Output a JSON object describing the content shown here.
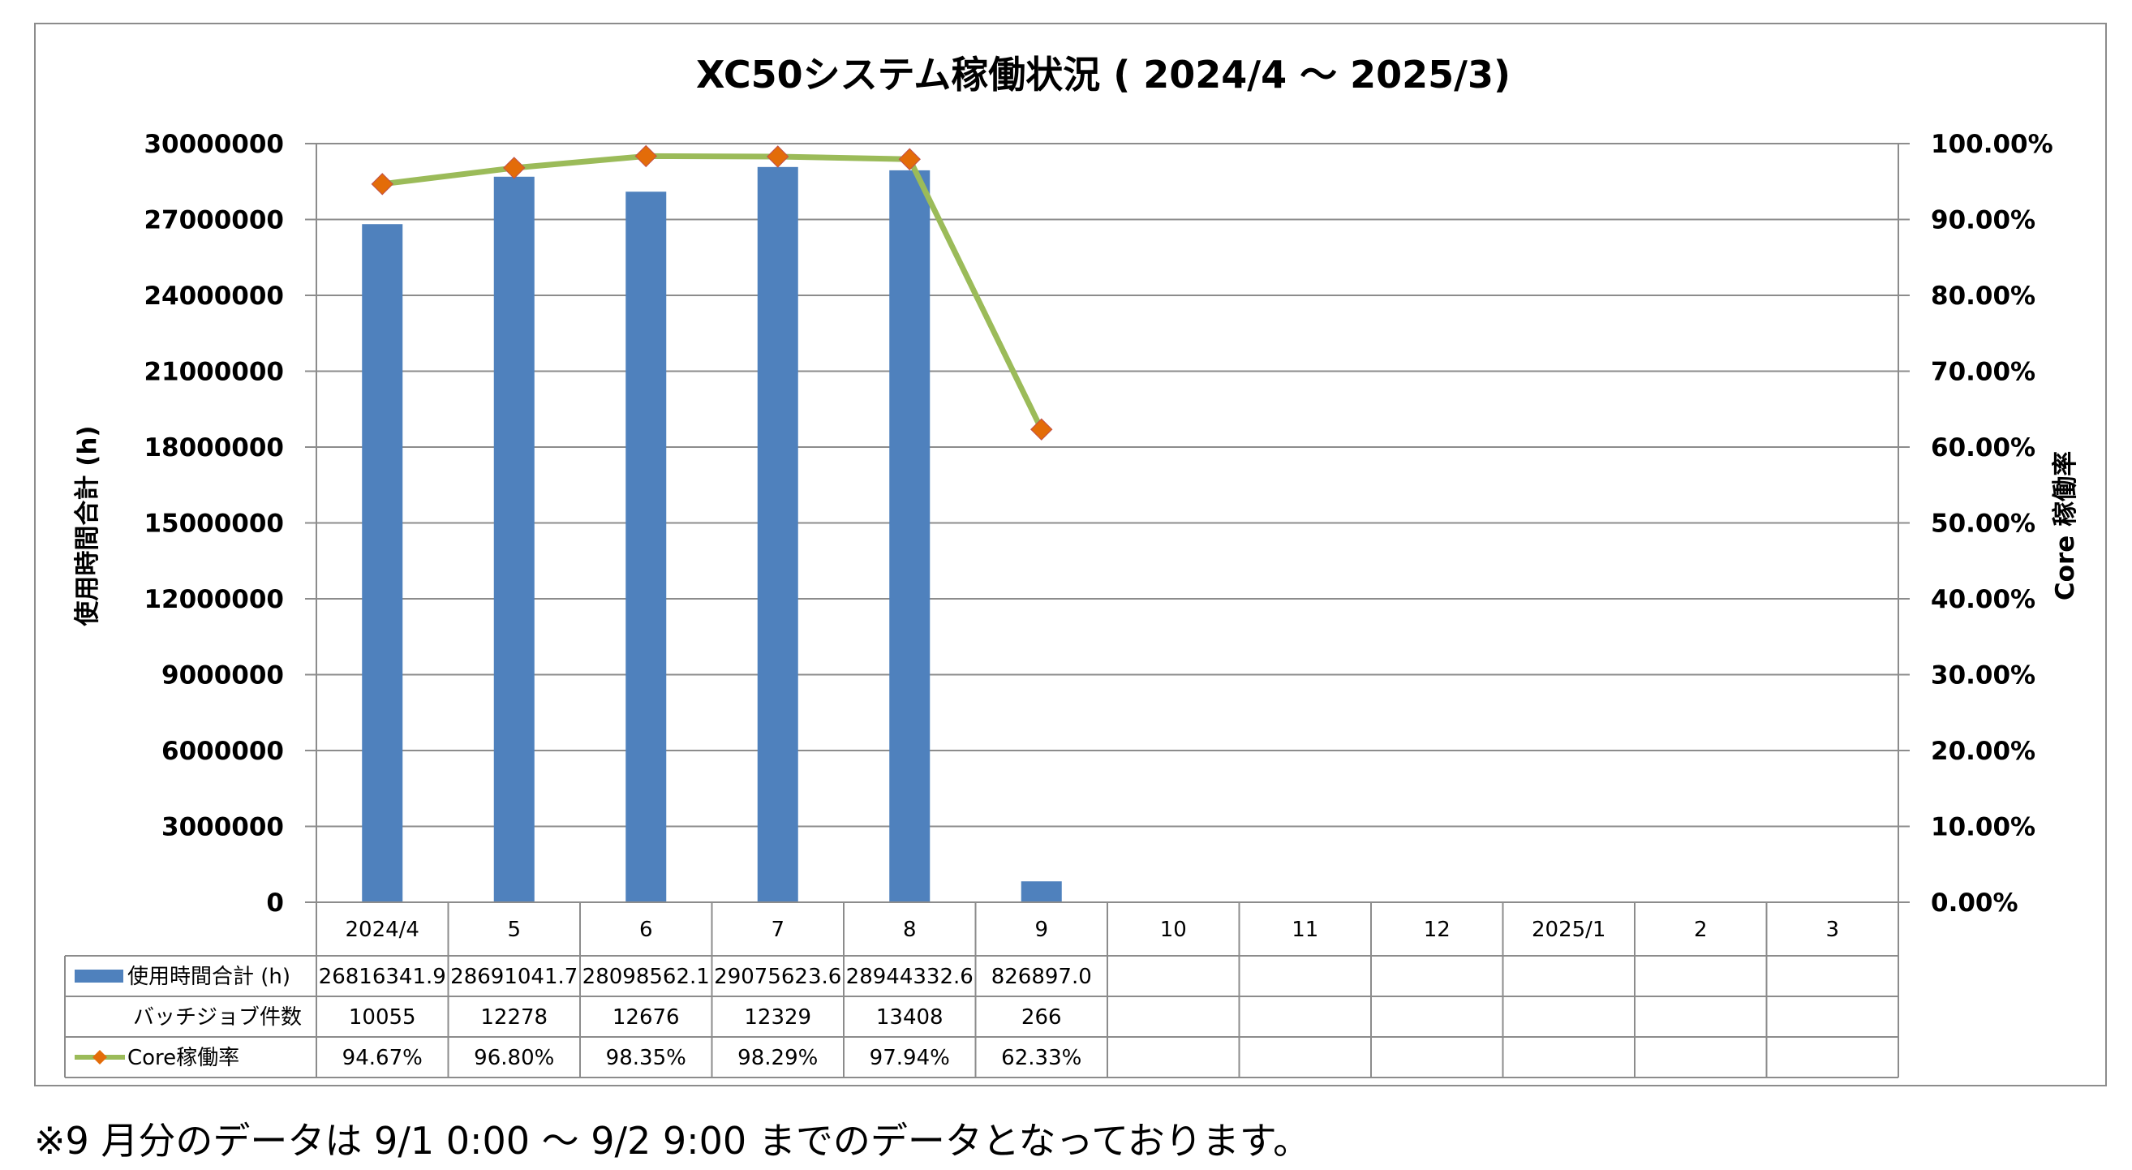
{
  "chart_data": {
    "type": "bar",
    "title": "XC50システム稼働状況 ( 2024/4 〜 2025/3)",
    "xlabel": "",
    "ylabel": "使用時間合計 (h)",
    "y2label": "Core 稼働率",
    "ylim": [
      0,
      30000000
    ],
    "y2lim": [
      0,
      1
    ],
    "yticks": [
      "0",
      "3000000",
      "6000000",
      "9000000",
      "12000000",
      "15000000",
      "18000000",
      "21000000",
      "24000000",
      "27000000",
      "30000000"
    ],
    "y2ticks": [
      "0.00%",
      "10.00%",
      "20.00%",
      "30.00%",
      "40.00%",
      "50.00%",
      "60.00%",
      "70.00%",
      "80.00%",
      "90.00%",
      "100.00%"
    ],
    "grid": true,
    "categories": [
      "2024/4",
      "5",
      "6",
      "7",
      "8",
      "9",
      "10",
      "11",
      "12",
      "2025/1",
      "2",
      "3"
    ],
    "series": [
      {
        "name": "使用時間合計 (h)",
        "kind": "bar",
        "axis": "left",
        "color": "#4f81bd",
        "values": [
          26816341.9,
          28691041.7,
          28098562.1,
          29075623.6,
          28944332.6,
          826897.0,
          null,
          null,
          null,
          null,
          null,
          null
        ],
        "table_text": [
          "26816341.9",
          "28691041.7",
          "28098562.1",
          "29075623.6",
          "28944332.6",
          "826897.0",
          "",
          "",
          "",
          "",
          "",
          ""
        ]
      },
      {
        "name": "バッチジョブ件数",
        "kind": "table-only",
        "values": [
          10055,
          12278,
          12676,
          12329,
          13408,
          266,
          null,
          null,
          null,
          null,
          null,
          null
        ],
        "table_text": [
          "10055",
          "12278",
          "12676",
          "12329",
          "13408",
          "266",
          "",
          "",
          "",
          "",
          "",
          ""
        ]
      },
      {
        "name": "Core稼働率",
        "kind": "line",
        "axis": "right",
        "color": "#9bbb59",
        "marker_color": "#e36c09",
        "values": [
          0.9467,
          0.968,
          0.9835,
          0.9829,
          0.9794,
          0.6233,
          null,
          null,
          null,
          null,
          null,
          null
        ],
        "table_text": [
          "94.67%",
          "96.80%",
          "98.35%",
          "98.29%",
          "97.94%",
          "62.33%",
          "",
          "",
          "",
          "",
          "",
          ""
        ]
      }
    ]
  },
  "footnote": "※9 月分のデータは 9/1 0:00 〜 9/2 9:00 までのデータとなっております。"
}
